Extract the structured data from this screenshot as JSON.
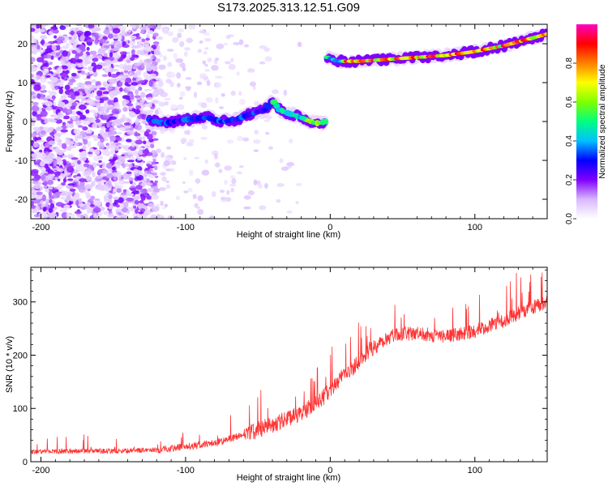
{
  "title": "S173.2025.313.12.51.G09",
  "chart_data": [
    {
      "type": "heatmap",
      "name": "spectrogram",
      "xlabel": "Height of straight line (km)",
      "ylabel": "Frequency (Hz)",
      "xlim": [
        -207,
        150
      ],
      "ylim": [
        -25,
        25
      ],
      "xticks": [
        -200,
        -100,
        0,
        100
      ],
      "xtick_labels": [
        "-200",
        "-100",
        "0",
        "100"
      ],
      "yticks": [
        -20,
        -10,
        0,
        10,
        20
      ],
      "ytick_labels": [
        "-20",
        "-10",
        "0",
        "10",
        "20"
      ],
      "colorbar": {
        "label": "Normalized spectral amplitude",
        "range": [
          0,
          1
        ],
        "ticks": [
          0.0,
          0.2,
          0.4,
          0.6,
          0.8
        ],
        "tick_labels": [
          "0.0",
          "0.2",
          "0.4",
          "0.6",
          "0.8"
        ],
        "colors": [
          "#ffffff",
          "#d8b8ff",
          "#8000ff",
          "#0000ff",
          "#00c0ff",
          "#00ff80",
          "#80ff00",
          "#ffff00",
          "#ff8000",
          "#ff0000",
          "#ff00c0"
        ]
      },
      "tracks": [
        {
          "name": "low-segment",
          "points": [
            [
              -125,
              0.5
            ],
            [
              -115,
              -0.5
            ],
            [
              -100,
              0.5
            ],
            [
              -85,
              1
            ],
            [
              -75,
              0
            ],
            [
              -65,
              0.5
            ],
            [
              -55,
              2
            ],
            [
              -45,
              3
            ],
            [
              -40,
              5.5
            ],
            [
              -35,
              3
            ],
            [
              -28,
              2
            ],
            [
              -20,
              1
            ],
            [
              -10,
              -0.5
            ],
            [
              -3,
              0
            ]
          ]
        },
        {
          "name": "high-segment",
          "points": [
            [
              -2,
              16.5
            ],
            [
              5,
              15.5
            ],
            [
              20,
              15.5
            ],
            [
              40,
              16
            ],
            [
              60,
              16.5
            ],
            [
              80,
              17
            ],
            [
              100,
              18
            ],
            [
              120,
              19.5
            ],
            [
              135,
              21
            ],
            [
              150,
              22.5
            ]
          ]
        }
      ]
    },
    {
      "type": "line",
      "name": "snr",
      "xlabel": "Height of straight line (km)",
      "ylabel": "SNR (10 * v/v)",
      "xlim": [
        -207,
        150
      ],
      "ylim": [
        0,
        365
      ],
      "xticks": [
        -200,
        -100,
        0,
        100
      ],
      "xtick_labels": [
        "-200",
        "-100",
        "0",
        "100"
      ],
      "yticks": [
        0,
        100,
        200,
        300
      ],
      "ytick_labels": [
        "0",
        "100",
        "200",
        "300"
      ],
      "color": "#ff3333",
      "trend": {
        "x": [
          -207,
          -180,
          -150,
          -120,
          -100,
          -80,
          -60,
          -40,
          -25,
          -15,
          -5,
          5,
          15,
          25,
          35,
          45,
          60,
          80,
          100,
          120,
          135,
          150
        ],
        "y": [
          18,
          20,
          20,
          22,
          28,
          35,
          50,
          70,
          85,
          100,
          120,
          150,
          175,
          205,
          225,
          240,
          240,
          235,
          245,
          265,
          285,
          300
        ]
      }
    }
  ]
}
